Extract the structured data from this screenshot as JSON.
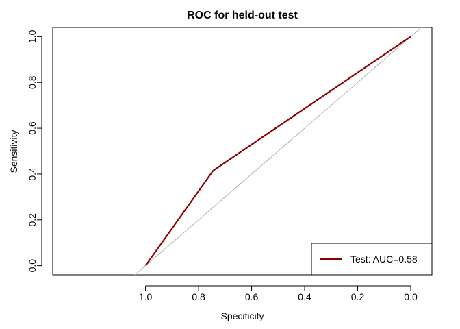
{
  "chart_data": {
    "type": "line",
    "title": "ROC for held-out test",
    "xlabel": "Specificity",
    "ylabel": "Sensitivity",
    "x_reversed": true,
    "xlim": [
      1.35,
      -0.08
    ],
    "ylim": [
      -0.04,
      1.04
    ],
    "xticks": [
      "1.0",
      "0.8",
      "0.6",
      "0.4",
      "0.2",
      "0.0"
    ],
    "xtick_values": [
      1.0,
      0.8,
      0.6,
      0.4,
      0.2,
      0.0
    ],
    "yticks": [
      "0.0",
      "0.2",
      "0.4",
      "0.6",
      "0.8",
      "1.0"
    ],
    "ytick_values": [
      0.0,
      0.2,
      0.4,
      0.6,
      0.8,
      1.0
    ],
    "grid": false,
    "legend_position": "bottom-right",
    "series": [
      {
        "name": "Test: AUC=0.58",
        "color": "#8b0000",
        "x": [
          1.0,
          0.745,
          0.0
        ],
        "y": [
          0.0,
          0.415,
          1.0
        ]
      }
    ],
    "reference_line": {
      "color": "#b0b0b0",
      "x": [
        1.0,
        0.0
      ],
      "y": [
        0.0,
        1.0
      ]
    }
  }
}
